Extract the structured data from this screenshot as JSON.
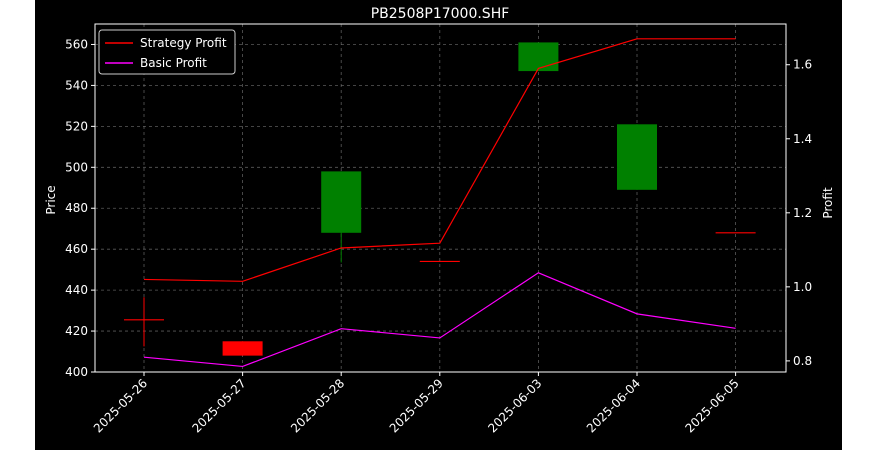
{
  "chart_data": {
    "type": "candlestick",
    "title": "PB2508P17000.SHF",
    "xlabel": "",
    "ylabel": "Price",
    "ylabel_right": "Profit",
    "ylim": [
      400,
      570
    ],
    "ylim_right": [
      0.77,
      1.71
    ],
    "yticks": [
      400,
      420,
      440,
      460,
      480,
      500,
      520,
      540,
      560
    ],
    "yticks_right": [
      "0.8",
      "1.0",
      "1.2",
      "1.4",
      "1.6"
    ],
    "categories": [
      "2025-05-26",
      "2025-05-27",
      "2025-05-28",
      "2025-05-29",
      "2025-06-03",
      "2025-06-04",
      "2025-06-05"
    ],
    "candles": [
      {
        "open": 425.5,
        "close": 425.5,
        "high": 436.5,
        "low": 412.5
      },
      {
        "open": 415.0,
        "close": 408.0,
        "high": 415.0,
        "low": 408.0
      },
      {
        "open": 468.0,
        "close": 498.0,
        "high": 498.0,
        "low": 453.5
      },
      {
        "open": 454.0,
        "close": 454.0,
        "high": 454.0,
        "low": 454.0
      },
      {
        "open": 547.0,
        "close": 561.0,
        "high": 561.0,
        "low": 547.0
      },
      {
        "open": 489.0,
        "close": 521.0,
        "high": 521.0,
        "low": 489.0
      },
      {
        "open": 468.0,
        "close": 468.0,
        "high": 468.0,
        "low": 468.0
      }
    ],
    "series": [
      {
        "name": "Strategy Profit",
        "axis": "right",
        "color": "#ff0000",
        "values": [
          1.02,
          1.015,
          1.105,
          1.118,
          1.59,
          1.67,
          1.67
        ]
      },
      {
        "name": "Basic Profit",
        "axis": "right",
        "color": "#ff00ff",
        "values": [
          0.81,
          0.785,
          0.887,
          0.862,
          1.038,
          0.927,
          0.888
        ]
      }
    ],
    "colors": {
      "up": "#008000",
      "down": "#ff0000",
      "grid": "#808080",
      "background": "#000000",
      "text": "#ffffff"
    },
    "grid": true,
    "legend": "top-left"
  }
}
